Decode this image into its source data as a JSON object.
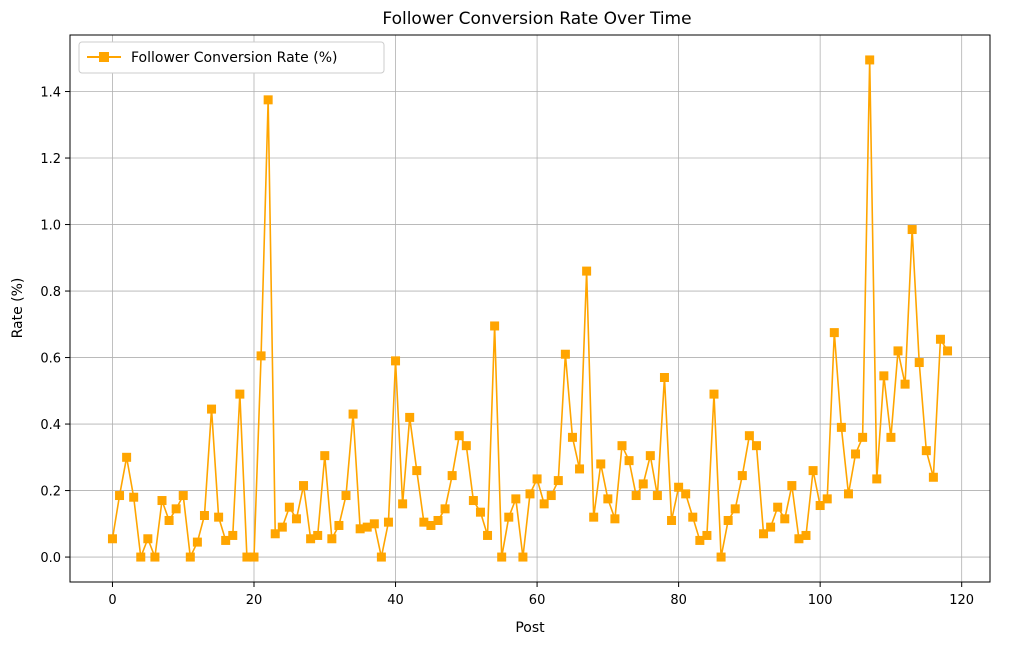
{
  "chart_data": {
    "type": "line",
    "title": "Follower Conversion Rate Over Time",
    "xlabel": "Post",
    "ylabel": "Rate (%)",
    "xlim": [
      -6,
      124
    ],
    "ylim": [
      -0.075,
      1.57
    ],
    "xticks": [
      0,
      20,
      40,
      60,
      80,
      100,
      120
    ],
    "yticks": [
      0.0,
      0.2,
      0.4,
      0.6,
      0.8,
      1.0,
      1.2,
      1.4
    ],
    "xtick_labels": [
      "0",
      "20",
      "40",
      "60",
      "80",
      "100",
      "120"
    ],
    "ytick_labels": [
      "0.0",
      "0.2",
      "0.4",
      "0.6",
      "0.8",
      "1.0",
      "1.2",
      "1.4"
    ],
    "grid": true,
    "legend_position": "top-left",
    "series": [
      {
        "name": "Follower Conversion Rate (%)",
        "color": "#FFA500",
        "marker": "square",
        "x": [
          0,
          1,
          2,
          3,
          4,
          5,
          6,
          7,
          8,
          9,
          10,
          11,
          12,
          13,
          14,
          15,
          16,
          17,
          18,
          19,
          20,
          21,
          22,
          23,
          24,
          25,
          26,
          27,
          28,
          29,
          30,
          31,
          32,
          33,
          34,
          35,
          36,
          37,
          38,
          39,
          40,
          41,
          42,
          43,
          44,
          45,
          46,
          47,
          48,
          49,
          50,
          51,
          52,
          53,
          54,
          55,
          56,
          57,
          58,
          59,
          60,
          61,
          62,
          63,
          64,
          65,
          66,
          67,
          68,
          69,
          70,
          71,
          72,
          73,
          74,
          75,
          76,
          77,
          78,
          79,
          80,
          81,
          82,
          83,
          84,
          85,
          86,
          87,
          88,
          89,
          90,
          91,
          92,
          93,
          94,
          95,
          96,
          97,
          98,
          99,
          100,
          101,
          102,
          103,
          104,
          105,
          106,
          107,
          108,
          109,
          110,
          111,
          112,
          113,
          114,
          115,
          116,
          117,
          118
        ],
        "values": [
          0.055,
          0.185,
          0.3,
          0.18,
          0.0,
          0.055,
          0.0,
          0.17,
          0.11,
          0.145,
          0.185,
          0.0,
          0.045,
          0.125,
          0.445,
          0.12,
          0.05,
          0.065,
          0.49,
          0.0,
          0.0,
          0.605,
          1.375,
          0.07,
          0.09,
          0.15,
          0.115,
          0.215,
          0.055,
          0.065,
          0.305,
          0.055,
          0.095,
          0.185,
          0.43,
          0.085,
          0.09,
          0.1,
          0.0,
          0.105,
          0.59,
          0.16,
          0.42,
          0.26,
          0.105,
          0.095,
          0.11,
          0.145,
          0.245,
          0.365,
          0.335,
          0.17,
          0.135,
          0.065,
          0.695,
          0.0,
          0.12,
          0.175,
          0.0,
          0.19,
          0.235,
          0.16,
          0.185,
          0.23,
          0.61,
          0.36,
          0.265,
          0.86,
          0.12,
          0.28,
          0.175,
          0.115,
          0.335,
          0.29,
          0.185,
          0.22,
          0.305,
          0.185,
          0.54,
          0.11,
          0.21,
          0.19,
          0.12,
          0.05,
          0.065,
          0.49,
          0.0,
          0.11,
          0.145,
          0.245,
          0.365,
          0.335,
          0.07,
          0.09,
          0.15,
          0.115,
          0.215,
          0.055,
          0.065,
          0.26,
          0.155,
          0.175,
          0.675,
          0.39,
          0.19,
          0.31,
          0.36,
          1.495,
          0.235,
          0.545,
          0.36,
          0.62,
          0.52,
          0.985,
          0.585,
          0.32,
          0.24,
          0.655,
          0.62
        ]
      }
    ]
  }
}
